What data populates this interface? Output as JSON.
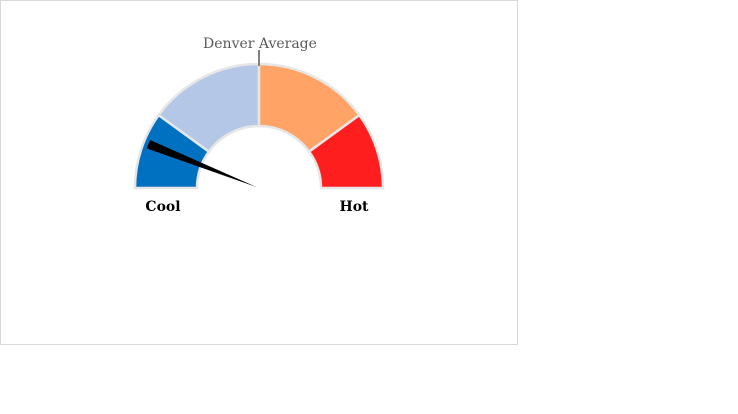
{
  "chart_data": {
    "type": "gauge",
    "range": [
      0,
      100
    ],
    "segments": [
      {
        "name": "segment-1",
        "from": 0,
        "to": 20,
        "color": "#0070C0"
      },
      {
        "name": "segment-2",
        "from": 20,
        "to": 50,
        "color": "#B4C7E7"
      },
      {
        "name": "segment-3",
        "from": 50,
        "to": 80,
        "color": "#FFA366"
      },
      {
        "name": "segment-4",
        "from": 80,
        "to": 100,
        "color": "#FF1E1E"
      }
    ],
    "needle_value": 12,
    "needle_color": "#000000",
    "reference": {
      "label": "Denver Average",
      "value": 50,
      "color": "#808080"
    },
    "min_label": "Cool",
    "max_label": "Hot",
    "separator_color": "#E6E6E6"
  }
}
